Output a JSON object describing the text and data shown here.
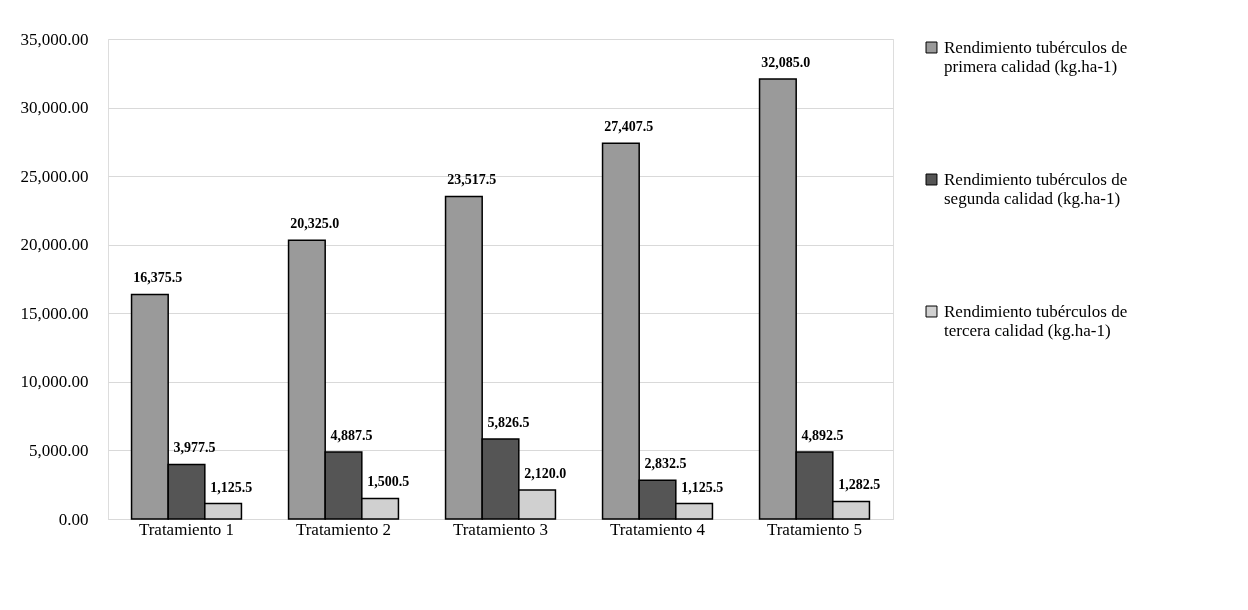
{
  "chart_data": {
    "type": "bar",
    "categories": [
      "Tratamiento 1",
      "Tratamiento 2",
      "Tratamiento 3",
      "Tratamiento 4",
      "Tratamiento 5"
    ],
    "series": [
      {
        "name": "Rendimiento tubérculos de primera calidad (kg.ha-1)",
        "color": "#9a9a9a",
        "values": [
          16375.5,
          20325.0,
          23517.5,
          27407.5,
          32085.0
        ],
        "value_labels": [
          "16,375.5",
          "20,325.0",
          "23,517.5",
          "27,407.5",
          "32,085.0"
        ]
      },
      {
        "name": "Rendimiento tubérculos de segunda calidad (kg.ha-1)",
        "color": "#555555",
        "values": [
          3977.5,
          4887.5,
          5826.5,
          2832.5,
          4892.5
        ],
        "value_labels": [
          "3,977.5",
          "4,887.5",
          "5,826.5",
          "2,832.5",
          "4,892.5"
        ]
      },
      {
        "name": "Rendimiento tubérculos de tercera calidad (kg.ha-1)",
        "color": "#d0d0d0",
        "values": [
          1125.5,
          1500.5,
          2120.0,
          1125.5,
          1282.5
        ],
        "value_labels": [
          "1,125.5",
          "1,500.5",
          "2,120.0",
          "1,125.5",
          "1,282.5"
        ]
      }
    ],
    "ylim": [
      0,
      35000
    ],
    "yticks": [
      {
        "value": 0,
        "label": "0.00"
      },
      {
        "value": 5000,
        "label": "5,000.00"
      },
      {
        "value": 10000,
        "label": "10,000.00"
      },
      {
        "value": 15000,
        "label": "15,000.00"
      },
      {
        "value": 20000,
        "label": "20,000.00"
      },
      {
        "value": 25000,
        "label": "25,000.00"
      },
      {
        "value": 30000,
        "label": "30,000.00"
      },
      {
        "value": 35000,
        "label": "35,000.00"
      }
    ],
    "grid": "y",
    "legend": "right"
  }
}
